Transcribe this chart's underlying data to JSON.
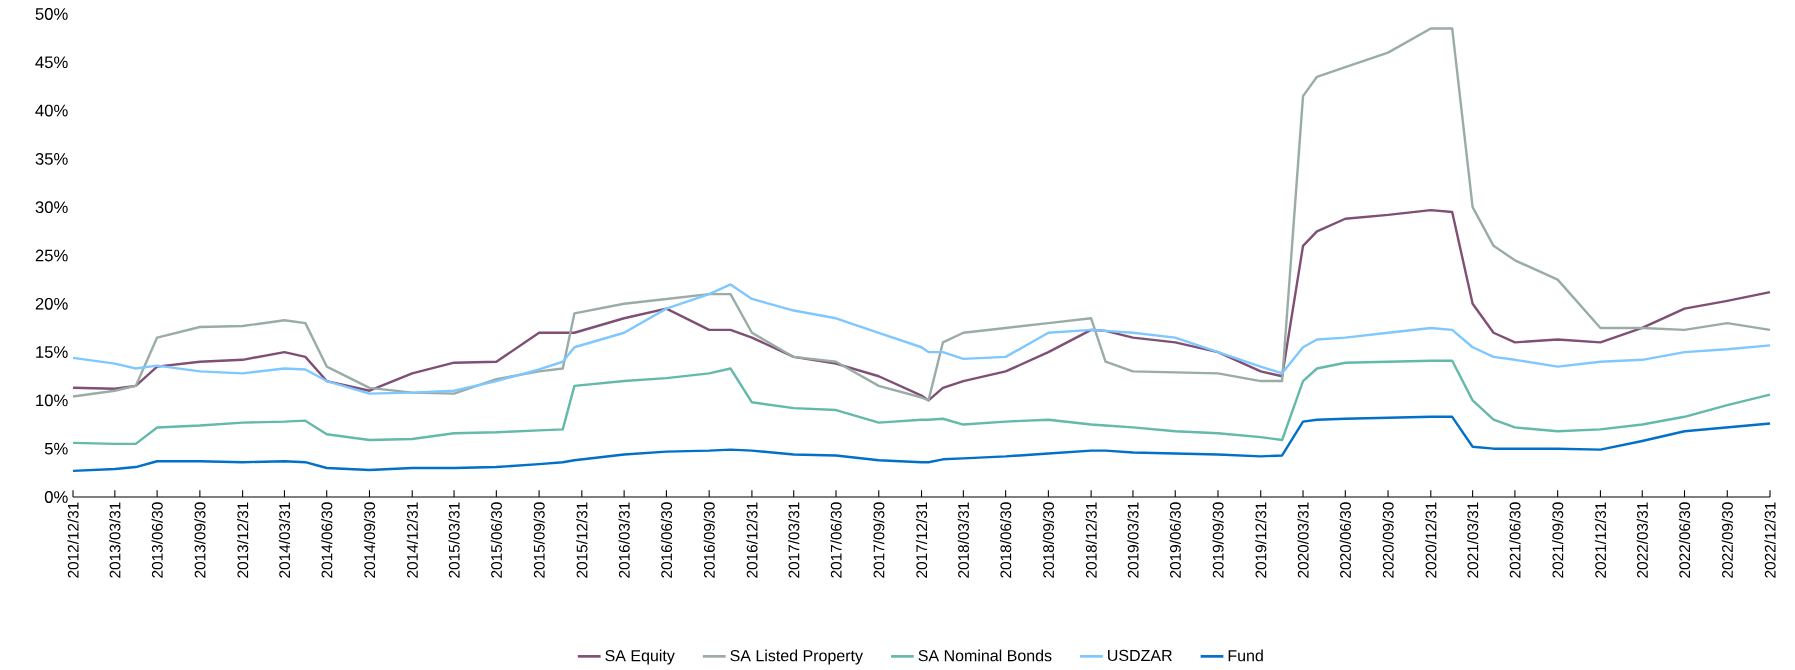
{
  "chart_data": {
    "type": "line",
    "legend": "bottom",
    "grid": false,
    "line_style": "solid",
    "x": [
      "2012-12-31",
      "2013-03-31",
      "2013-05-15",
      "2013-06-30",
      "2013-09-30",
      "2013-12-31",
      "2014-03-31",
      "2014-05-15",
      "2014-06-30",
      "2014-09-30",
      "2014-12-31",
      "2015-03-31",
      "2015-06-30",
      "2015-09-30",
      "2015-11-20",
      "2015-12-15",
      "2016-03-31",
      "2016-06-30",
      "2016-09-30",
      "2016-11-15",
      "2016-12-31",
      "2017-03-31",
      "2017-06-30",
      "2017-09-30",
      "2017-12-31",
      "2018-01-15",
      "2018-02-15",
      "2018-03-31",
      "2018-06-30",
      "2018-09-30",
      "2018-12-31",
      "2019-01-31",
      "2019-03-31",
      "2019-06-30",
      "2019-09-30",
      "2019-12-31",
      "2020-02-15",
      "2020-03-31",
      "2020-04-30",
      "2020-06-30",
      "2020-09-30",
      "2020-12-31",
      "2021-02-15",
      "2021-03-31",
      "2021-05-15",
      "2021-06-30",
      "2021-09-30",
      "2021-12-31",
      "2022-03-31",
      "2022-06-30",
      "2022-09-30",
      "2022-12-31"
    ],
    "series": [
      {
        "name": "SA Equity",
        "color": "#7f4f74",
        "values": [
          11.3,
          11.2,
          11.5,
          13.5,
          14.0,
          14.2,
          15.0,
          14.5,
          12.0,
          11.0,
          12.8,
          13.9,
          14.0,
          17.0,
          17.0,
          17.0,
          18.5,
          19.5,
          17.3,
          17.3,
          16.5,
          14.5,
          13.8,
          12.5,
          10.5,
          10.0,
          11.3,
          12.0,
          13.0,
          15.0,
          17.3,
          17.2,
          16.5,
          16.0,
          15.0,
          13.0,
          12.5,
          26.0,
          27.5,
          28.8,
          29.2,
          29.7,
          29.5,
          20.0,
          17.0,
          16.0,
          16.3,
          16.0,
          17.5,
          19.5,
          20.3,
          21.2
        ]
      },
      {
        "name": "SA Listed Property",
        "color": "#9aaca6",
        "values": [
          10.4,
          11.0,
          11.5,
          16.5,
          17.6,
          17.7,
          18.3,
          18.0,
          13.5,
          11.3,
          10.8,
          10.7,
          12.2,
          13.0,
          13.3,
          19.0,
          20.0,
          20.5,
          21.0,
          21.0,
          17.0,
          14.5,
          14.0,
          11.5,
          10.3,
          10.0,
          16.0,
          17.0,
          17.5,
          18.0,
          18.5,
          14.0,
          13.0,
          12.9,
          12.8,
          12.0,
          12.0,
          41.5,
          43.5,
          44.5,
          46.0,
          48.5,
          48.5,
          30.0,
          26.0,
          24.5,
          22.5,
          17.5,
          17.5,
          17.3,
          18.0,
          17.3
        ]
      },
      {
        "name": "SA Nominal Bonds",
        "color": "#63b9aa",
        "values": [
          5.6,
          5.5,
          5.5,
          7.2,
          7.4,
          7.7,
          7.8,
          7.9,
          6.5,
          5.9,
          6.0,
          6.6,
          6.7,
          6.9,
          7.0,
          11.5,
          12.0,
          12.3,
          12.8,
          13.3,
          9.8,
          9.2,
          9.0,
          7.7,
          8.0,
          8.0,
          8.1,
          7.5,
          7.8,
          8.0,
          7.5,
          7.4,
          7.2,
          6.8,
          6.6,
          6.2,
          5.9,
          12.0,
          13.3,
          13.9,
          14.0,
          14.1,
          14.1,
          10.0,
          8.0,
          7.2,
          6.8,
          7.0,
          7.5,
          8.3,
          9.5,
          10.6
        ]
      },
      {
        "name": "USDZAR",
        "color": "#7fc8ff",
        "values": [
          14.4,
          13.8,
          13.3,
          13.6,
          13.0,
          12.8,
          13.3,
          13.2,
          12.0,
          10.7,
          10.8,
          11.0,
          12.0,
          13.2,
          14.0,
          15.5,
          17.0,
          19.5,
          21.0,
          22.0,
          20.5,
          19.3,
          18.5,
          17.0,
          15.5,
          15.0,
          15.0,
          14.3,
          14.5,
          17.0,
          17.3,
          17.2,
          17.0,
          16.5,
          15.0,
          13.5,
          12.8,
          15.5,
          16.3,
          16.5,
          17.0,
          17.5,
          17.3,
          15.5,
          14.5,
          14.2,
          13.5,
          14.0,
          14.2,
          15.0,
          15.3,
          15.7
        ]
      },
      {
        "name": "Fund",
        "color": "#0070c8",
        "values": [
          2.7,
          2.9,
          3.1,
          3.7,
          3.7,
          3.6,
          3.7,
          3.6,
          3.0,
          2.8,
          3.0,
          3.0,
          3.1,
          3.4,
          3.6,
          3.8,
          4.4,
          4.7,
          4.8,
          4.9,
          4.8,
          4.4,
          4.3,
          3.8,
          3.6,
          3.6,
          3.9,
          4.0,
          4.2,
          4.5,
          4.8,
          4.8,
          4.6,
          4.5,
          4.4,
          4.2,
          4.3,
          7.8,
          8.0,
          8.1,
          8.2,
          8.3,
          8.3,
          5.2,
          5.0,
          5.0,
          5.0,
          4.9,
          5.8,
          6.8,
          7.2,
          7.6
        ]
      }
    ],
    "ylim": [
      0,
      50
    ],
    "yticks": [
      {
        "value": 0,
        "label": "0%"
      },
      {
        "value": 5,
        "label": "5%"
      },
      {
        "value": 10,
        "label": "10%"
      },
      {
        "value": 15,
        "label": "15%"
      },
      {
        "value": 20,
        "label": "20%"
      },
      {
        "value": 25,
        "label": "25%"
      },
      {
        "value": 30,
        "label": "30%"
      },
      {
        "value": 35,
        "label": "35%"
      },
      {
        "value": 40,
        "label": "40%"
      },
      {
        "value": 45,
        "label": "45%"
      },
      {
        "value": 50,
        "label": "50%"
      }
    ],
    "xlim": [
      "2012-12-31",
      "2022-12-31"
    ],
    "xticks": [
      {
        "value": "2012-12-31",
        "label": "2012/12/31"
      },
      {
        "value": "2013-03-31",
        "label": "2013/03/31"
      },
      {
        "value": "2013-06-30",
        "label": "2013/06/30"
      },
      {
        "value": "2013-09-30",
        "label": "2013/09/30"
      },
      {
        "value": "2013-12-31",
        "label": "2013/12/31"
      },
      {
        "value": "2014-03-31",
        "label": "2014/03/31"
      },
      {
        "value": "2014-06-30",
        "label": "2014/06/30"
      },
      {
        "value": "2014-09-30",
        "label": "2014/09/30"
      },
      {
        "value": "2014-12-31",
        "label": "2014/12/31"
      },
      {
        "value": "2015-03-31",
        "label": "2015/03/31"
      },
      {
        "value": "2015-06-30",
        "label": "2015/06/30"
      },
      {
        "value": "2015-09-30",
        "label": "2015/09/30"
      },
      {
        "value": "2015-12-31",
        "label": "2015/12/31"
      },
      {
        "value": "2016-03-31",
        "label": "2016/03/31"
      },
      {
        "value": "2016-06-30",
        "label": "2016/06/30"
      },
      {
        "value": "2016-09-30",
        "label": "2016/09/30"
      },
      {
        "value": "2016-12-31",
        "label": "2016/12/31"
      },
      {
        "value": "2017-03-31",
        "label": "2017/03/31"
      },
      {
        "value": "2017-06-30",
        "label": "2017/06/30"
      },
      {
        "value": "2017-09-30",
        "label": "2017/09/30"
      },
      {
        "value": "2017-12-31",
        "label": "2017/12/31"
      },
      {
        "value": "2018-03-31",
        "label": "2018/03/31"
      },
      {
        "value": "2018-06-30",
        "label": "2018/06/30"
      },
      {
        "value": "2018-09-30",
        "label": "2018/09/30"
      },
      {
        "value": "2018-12-31",
        "label": "2018/12/31"
      },
      {
        "value": "2019-03-31",
        "label": "2019/03/31"
      },
      {
        "value": "2019-06-30",
        "label": "2019/06/30"
      },
      {
        "value": "2019-09-30",
        "label": "2019/09/30"
      },
      {
        "value": "2019-12-31",
        "label": "2019/12/31"
      },
      {
        "value": "2020-03-31",
        "label": "2020/03/31"
      },
      {
        "value": "2020-06-30",
        "label": "2020/06/30"
      },
      {
        "value": "2020-09-30",
        "label": "2020/09/30"
      },
      {
        "value": "2020-12-31",
        "label": "2020/12/31"
      },
      {
        "value": "2021-03-31",
        "label": "2021/03/31"
      },
      {
        "value": "2021-06-30",
        "label": "2021/06/30"
      },
      {
        "value": "2021-09-30",
        "label": "2021/09/30"
      },
      {
        "value": "2021-12-31",
        "label": "2021/12/31"
      },
      {
        "value": "2022-03-31",
        "label": "2022/03/31"
      },
      {
        "value": "2022-06-30",
        "label": "2022/06/30"
      },
      {
        "value": "2022-09-30",
        "label": "2022/09/30"
      },
      {
        "value": "2022-12-31",
        "label": "2022/12/31"
      }
    ]
  }
}
